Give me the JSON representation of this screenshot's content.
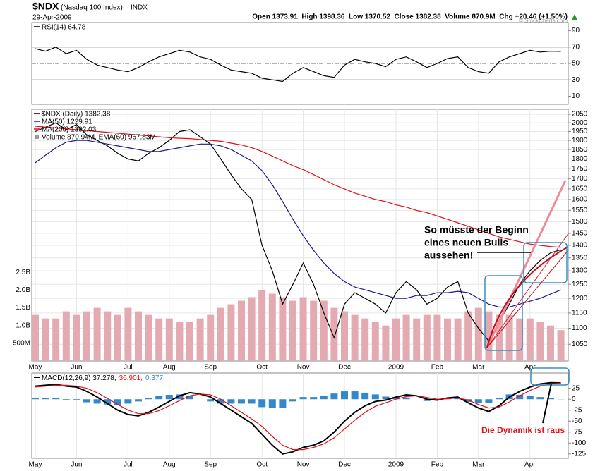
{
  "header": {
    "symbol": "$NDX",
    "name": "(Nasdaq 100 Index)",
    "exchange": "INDX",
    "date": "29-Apr-2009",
    "quote": "Open 1373.91  High 1398.36  Low 1370.52  Close 1382.38  Volume 870.9M  Chg +20.46 (+1.50%)",
    "watermark": "© StockCharts.com"
  },
  "annotations": {
    "bull_lines": [
      "So müsste der Beginn",
      "eines neuen Bulls",
      "aussehen!"
    ],
    "dynamik": "Die Dynamik ist raus"
  },
  "chart_data": [
    {
      "type": "line",
      "ylim": [
        0,
        100
      ],
      "yticks": [
        10,
        30,
        50,
        70,
        90
      ],
      "reference_lines": [
        70,
        50,
        30
      ],
      "grid": false,
      "series": [
        {
          "name": "RSI(14) 64.78",
          "color": "#000000",
          "values": [
            68,
            65,
            70,
            62,
            66,
            55,
            48,
            45,
            42,
            40,
            45,
            52,
            58,
            62,
            66,
            64,
            58,
            55,
            48,
            42,
            40,
            38,
            32,
            30,
            28,
            38,
            45,
            40,
            35,
            33,
            48,
            55,
            52,
            50,
            46,
            55,
            58,
            52,
            45,
            50,
            56,
            58,
            45,
            40,
            38,
            52,
            58,
            62,
            66,
            64,
            65,
            64.78
          ]
        }
      ]
    },
    {
      "type": "line",
      "log_scale": true,
      "grid": true,
      "categories": [
        "May",
        null,
        null,
        null,
        "Jun",
        null,
        null,
        null,
        null,
        "Jul",
        null,
        null,
        null,
        "Aug",
        null,
        null,
        null,
        "Sep",
        null,
        null,
        null,
        null,
        "Oct",
        null,
        null,
        null,
        "Nov",
        null,
        null,
        null,
        "Dec",
        null,
        null,
        null,
        null,
        "2009",
        null,
        null,
        null,
        "Feb",
        null,
        null,
        null,
        "Mar",
        null,
        null,
        null,
        null,
        "Apr",
        null,
        null,
        null
      ],
      "ylim": [
        1000,
        2080
      ],
      "yticks": [
        1050,
        1100,
        1150,
        1200,
        1250,
        1300,
        1350,
        1400,
        1450,
        1500,
        1550,
        1600,
        1650,
        1700,
        1750,
        1800,
        1850,
        1900,
        1950,
        2000,
        2050
      ],
      "y2lim": [
        0,
        7100000000
      ],
      "y2ticks": [
        {
          "value": 500000000,
          "label": "500M"
        },
        {
          "value": 1000000000,
          "label": "1.0B"
        },
        {
          "value": 1500000000,
          "label": "1.5B"
        },
        {
          "value": 2000000000,
          "label": "2.0B"
        },
        {
          "value": 2500000000,
          "label": "2.5B"
        }
      ],
      "series": [
        {
          "name": "$NDX (Daily) 1382.38",
          "color": "#000000",
          "values": [
            1950,
            1975,
            2000,
            1960,
            1990,
            1930,
            1900,
            1870,
            1830,
            1800,
            1790,
            1830,
            1860,
            1900,
            1950,
            1960,
            1920,
            1880,
            1800,
            1720,
            1650,
            1600,
            1400,
            1300,
            1180,
            1250,
            1330,
            1250,
            1150,
            1070,
            1180,
            1220,
            1200,
            1180,
            1150,
            1220,
            1260,
            1230,
            1180,
            1200,
            1240,
            1260,
            1150,
            1100,
            1060,
            1120,
            1180,
            1250,
            1300,
            1340,
            1370,
            1382.38
          ]
        },
        {
          "name": "MA(50) 1229.91",
          "color": "#1a1a8c",
          "values": [
            1780,
            1820,
            1860,
            1890,
            1900,
            1900,
            1890,
            1880,
            1870,
            1860,
            1850,
            1840,
            1840,
            1850,
            1860,
            1870,
            1880,
            1880,
            1870,
            1850,
            1820,
            1790,
            1740,
            1670,
            1590,
            1510,
            1440,
            1380,
            1330,
            1290,
            1260,
            1240,
            1230,
            1220,
            1210,
            1200,
            1200,
            1210,
            1210,
            1220,
            1220,
            1225,
            1220,
            1200,
            1180,
            1170,
            1170,
            1180,
            1190,
            1200,
            1215,
            1229.91
          ]
        },
        {
          "name": "MA(200) 1392.03",
          "color": "#e0101a",
          "values": [
            1980,
            1975,
            1970,
            1965,
            1960,
            1955,
            1950,
            1945,
            1940,
            1935,
            1930,
            1925,
            1920,
            1915,
            1912,
            1910,
            1905,
            1900,
            1895,
            1885,
            1875,
            1860,
            1840,
            1815,
            1790,
            1765,
            1745,
            1720,
            1695,
            1670,
            1650,
            1630,
            1615,
            1600,
            1590,
            1575,
            1565,
            1550,
            1540,
            1525,
            1510,
            1495,
            1480,
            1465,
            1450,
            1435,
            1425,
            1415,
            1405,
            1400,
            1395,
            1392.03
          ]
        },
        {
          "name": "Volume 870.94M, EMA(60) 967.83M",
          "color": "#e4aab2",
          "axis": "y2",
          "values": [
            1300000000,
            1200000000,
            1200000000,
            1400000000,
            1300000000,
            1400000000,
            1500000000,
            1400000000,
            1300000000,
            1500000000,
            1400000000,
            1300000000,
            1200000000,
            1200000000,
            1100000000,
            1100000000,
            1200000000,
            1300000000,
            1500000000,
            1600000000,
            1700000000,
            1800000000,
            2000000000,
            1900000000,
            1800000000,
            1700000000,
            1800000000,
            1700000000,
            1700000000,
            1500000000,
            1400000000,
            1300000000,
            1200000000,
            1100000000,
            1000000000,
            1200000000,
            1300000000,
            1200000000,
            1300000000,
            1300000000,
            1200000000,
            1200000000,
            1400000000,
            1500000000,
            1400000000,
            1300000000,
            1300000000,
            1200000000,
            1200000000,
            1100000000,
            1000000000,
            870940000
          ]
        }
      ]
    },
    {
      "type": "line",
      "grid": false,
      "legend_layout": "inline",
      "categories": [
        "May",
        null,
        null,
        null,
        "Jun",
        null,
        null,
        null,
        null,
        "Jul",
        null,
        null,
        null,
        "Aug",
        null,
        null,
        null,
        "Sep",
        null,
        null,
        null,
        null,
        "Oct",
        null,
        null,
        null,
        "Nov",
        null,
        null,
        null,
        "Dec",
        null,
        null,
        null,
        null,
        "2009",
        null,
        null,
        null,
        "Feb",
        null,
        null,
        null,
        "Mar",
        null,
        null,
        null,
        null,
        "Apr",
        null,
        null,
        null
      ],
      "ylim": [
        -135,
        60
      ],
      "yticks": [
        25,
        0,
        -25,
        -50,
        -75,
        -100,
        -125
      ],
      "series": [
        {
          "name": "MACD(12,26,9) 37.278,",
          "color": "#000000",
          "line_width": 2,
          "values": [
            30,
            32,
            34,
            30,
            28,
            18,
            5,
            -10,
            -25,
            -35,
            -38,
            -30,
            -18,
            -5,
            8,
            15,
            12,
            5,
            -10,
            -25,
            -40,
            -55,
            -80,
            -105,
            -125,
            -120,
            -110,
            -105,
            -95,
            -75,
            -50,
            -30,
            -15,
            -5,
            -2,
            5,
            10,
            8,
            0,
            -2,
            3,
            5,
            -8,
            -20,
            -28,
            -15,
            5,
            18,
            28,
            35,
            38,
            37.278
          ]
        },
        {
          "name": "36.901,",
          "color": "#e0101a",
          "values": [
            28,
            30,
            32,
            32,
            30,
            25,
            15,
            2,
            -12,
            -25,
            -33,
            -33,
            -26,
            -15,
            -3,
            8,
            12,
            10,
            0,
            -15,
            -30,
            -45,
            -62,
            -85,
            -105,
            -115,
            -115,
            -110,
            -102,
            -88,
            -68,
            -48,
            -30,
            -16,
            -8,
            0,
            6,
            8,
            4,
            0,
            1,
            3,
            -2,
            -12,
            -20,
            -18,
            -6,
            8,
            20,
            30,
            35,
            36.901
          ]
        },
        {
          "name": "0.377",
          "color": "#3388cc",
          "mark": "bar",
          "values": [
            2,
            2,
            2,
            -2,
            -2,
            -7,
            -10,
            -12,
            -13,
            -10,
            -5,
            3,
            8,
            10,
            11,
            7,
            0,
            -5,
            -10,
            -10,
            -10,
            -10,
            -18,
            -20,
            -20,
            -5,
            5,
            5,
            7,
            13,
            18,
            18,
            15,
            11,
            6,
            5,
            4,
            0,
            -4,
            -2,
            2,
            2,
            -6,
            -8,
            -8,
            3,
            11,
            10,
            8,
            5,
            3,
            0.377
          ]
        }
      ]
    }
  ]
}
